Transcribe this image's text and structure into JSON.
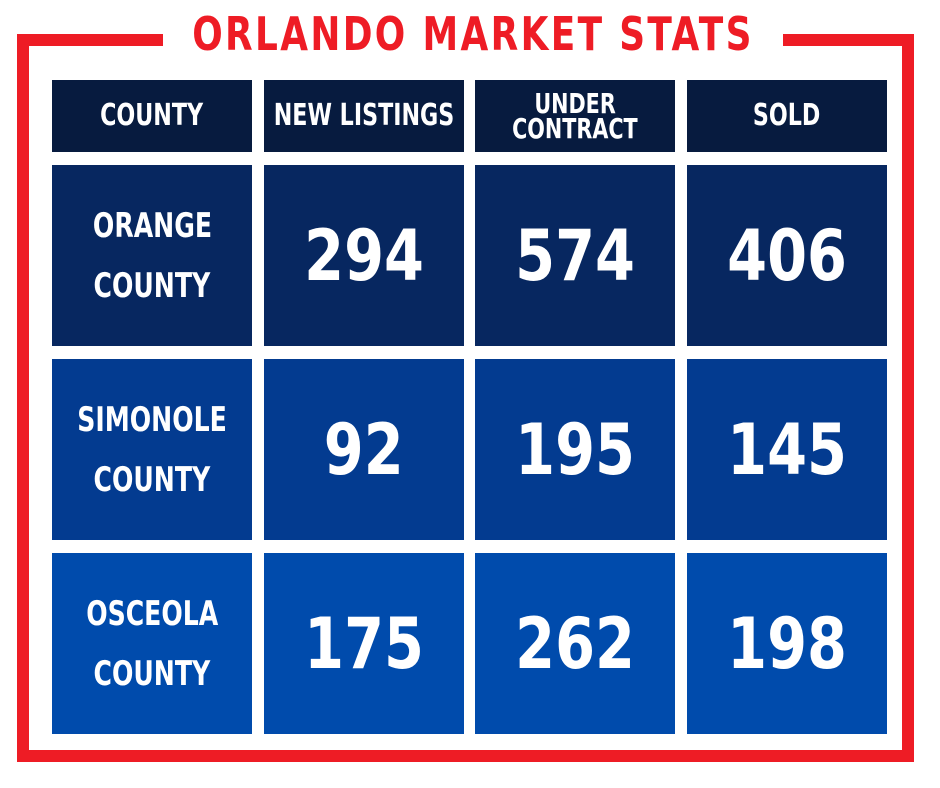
{
  "title": "ORLANDO MARKET STATS",
  "colors": {
    "accent": "#ee1c25",
    "header_bg": "#071b3f",
    "row1_bg": "#072760",
    "row2_bg": "#033b90",
    "row3_bg": "#004bac",
    "text": "#ffffff"
  },
  "chart_data": {
    "type": "table",
    "title": "ORLANDO MARKET STATS",
    "columns": [
      "COUNTY",
      "NEW LISTINGS",
      "UNDER CONTRACT",
      "SOLD"
    ],
    "header_lines": {
      "county": [
        "COUNTY"
      ],
      "new_listings": [
        "NEW LISTINGS"
      ],
      "under_contract": [
        "UNDER",
        "CONTRACT"
      ],
      "sold": [
        "SOLD"
      ]
    },
    "rows": [
      {
        "county_lines": [
          "ORANGE",
          "COUNTY"
        ],
        "new_listings": 294,
        "under_contract": 574,
        "sold": 406
      },
      {
        "county_lines": [
          "SIMONOLE",
          "COUNTY"
        ],
        "new_listings": 92,
        "under_contract": 195,
        "sold": 145
      },
      {
        "county_lines": [
          "OSCEOLA",
          "COUNTY"
        ],
        "new_listings": 175,
        "under_contract": 262,
        "sold": 198
      }
    ]
  }
}
